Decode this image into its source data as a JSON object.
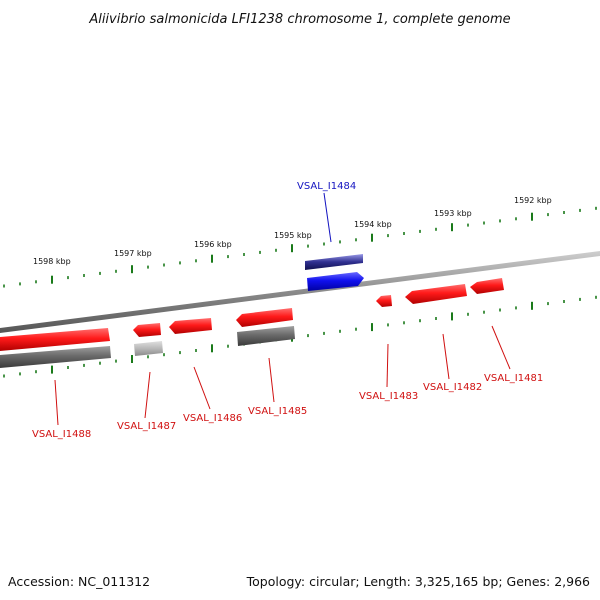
{
  "title": "Aliivibrio salmonicida LFI1238 chromosome 1, complete genome",
  "footer": {
    "accession": "Accession: NC_011312",
    "summary": "Topology: circular; Length: 3,325,165 bp; Genes: 2,966"
  },
  "colors": {
    "forward": "#e81010",
    "reverse": "#e81010",
    "highlight": "#1414e0",
    "backbone": "#8a8a8a",
    "tick": "#1a7a1a",
    "pseudo": "#6a6a6a",
    "label_red": "#d01010",
    "label_blue": "#1414c0"
  },
  "scale_ticks": [
    {
      "label": "1598 kbp"
    },
    {
      "label": "1597 kbp"
    },
    {
      "label": "1596 kbp"
    },
    {
      "label": "1595 kbp"
    },
    {
      "label": "1594 kbp"
    },
    {
      "label": "1593 kbp"
    },
    {
      "label": "1592 kbp"
    }
  ],
  "genes": [
    {
      "id": "VSAL_I1488",
      "strand": "reverse"
    },
    {
      "id": "VSAL_I1487",
      "strand": "reverse"
    },
    {
      "id": "VSAL_I1486",
      "strand": "reverse"
    },
    {
      "id": "VSAL_I1485",
      "strand": "reverse"
    },
    {
      "id": "VSAL_I1484",
      "strand": "forward",
      "highlight": true
    },
    {
      "id": "VSAL_I1483",
      "strand": "reverse"
    },
    {
      "id": "VSAL_I1482",
      "strand": "reverse"
    },
    {
      "id": "VSAL_I1481",
      "strand": "reverse"
    }
  ]
}
